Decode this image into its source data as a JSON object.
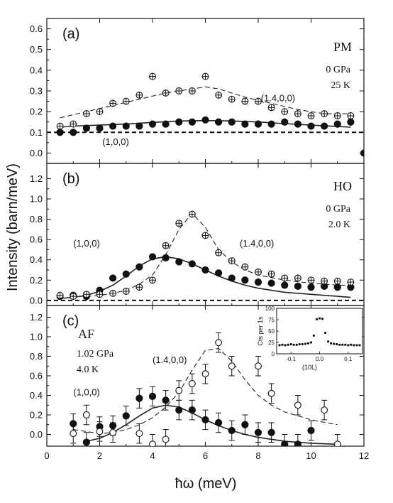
{
  "figure": {
    "xlabel": "ħω (meV)",
    "ylabel": "Intensity (barn/meV)"
  },
  "chart_data": [
    {
      "type": "scatter",
      "panel_label": "(a)",
      "phase": "PM",
      "conditions": [
        "0 GPa",
        "25 K"
      ],
      "xlim": [
        0,
        12
      ],
      "ylim": [
        -0.05,
        0.65
      ],
      "xticks": [
        0,
        2,
        4,
        6,
        8,
        10,
        12
      ],
      "yticks": [
        "0.0",
        "0.1",
        "0.2",
        "0.3",
        "0.4",
        "0.5",
        "0.6"
      ],
      "ytick_values": [
        0.0,
        0.1,
        0.2,
        0.3,
        0.4,
        0.5,
        0.6
      ],
      "series": [
        {
          "name": "(1,0,0)",
          "marker": "filled-circle",
          "x": [
            0.5,
            1.0,
            1.5,
            2.0,
            2.5,
            3.0,
            3.5,
            4.0,
            4.5,
            5.0,
            5.5,
            6.0,
            6.5,
            7.0,
            7.5,
            8.0,
            8.5,
            9.0,
            9.5,
            10.0,
            10.5,
            11.0,
            11.5,
            12.0
          ],
          "y": [
            0.1,
            0.1,
            0.12,
            0.12,
            0.13,
            0.13,
            0.13,
            0.14,
            0.14,
            0.15,
            0.15,
            0.16,
            0.15,
            0.15,
            0.14,
            0.14,
            0.14,
            0.15,
            0.14,
            0.13,
            0.13,
            0.14,
            0.15,
            0.0
          ]
        },
        {
          "name": "(1.4,0,0)",
          "marker": "crossed-circle",
          "x": [
            0.5,
            1.0,
            1.5,
            2.0,
            2.5,
            3.0,
            3.5,
            4.0,
            4.5,
            5.0,
            5.5,
            6.0,
            6.5,
            7.0,
            7.5,
            8.0,
            8.5,
            9.0,
            9.5,
            10.0,
            10.5,
            11.0,
            11.5
          ],
          "y": [
            0.13,
            0.14,
            0.19,
            0.2,
            0.24,
            0.25,
            0.28,
            0.37,
            0.29,
            0.3,
            0.3,
            0.37,
            0.28,
            0.26,
            0.25,
            0.25,
            0.22,
            0.2,
            0.19,
            0.18,
            0.19,
            0.18,
            0.18
          ]
        }
      ],
      "fits": [
        {
          "style": "solid",
          "x": [
            0.5,
            1.0,
            2.0,
            3.0,
            4.0,
            5.0,
            6.0,
            7.0,
            8.0,
            9.0,
            10.0,
            11.0,
            11.5
          ],
          "y": [
            0.125,
            0.13,
            0.135,
            0.14,
            0.148,
            0.155,
            0.157,
            0.155,
            0.15,
            0.142,
            0.135,
            0.128,
            0.125
          ]
        },
        {
          "style": "dashed",
          "x": [
            0.5,
            1.5,
            2.5,
            3.5,
            4.5,
            5.5,
            6.0,
            6.5,
            7.5,
            8.5,
            9.5,
            10.5,
            11.5
          ],
          "y": [
            0.17,
            0.2,
            0.23,
            0.26,
            0.29,
            0.31,
            0.32,
            0.31,
            0.27,
            0.24,
            0.21,
            0.19,
            0.19
          ]
        }
      ],
      "baseline": 0.1,
      "labels": [
        {
          "text": "(1,0,0)",
          "x": 2.1,
          "y": 0.04
        },
        {
          "text": "(1.4,0,0)",
          "x": 8.1,
          "y": 0.25
        }
      ]
    },
    {
      "type": "scatter",
      "panel_label": "(b)",
      "phase": "HO",
      "conditions": [
        "0 GPa",
        "2.0 K"
      ],
      "xlim": [
        0,
        12
      ],
      "ylim": [
        -0.05,
        1.35
      ],
      "xticks": [
        0,
        2,
        4,
        6,
        8,
        10,
        12
      ],
      "yticks": [
        "0.0",
        "0.2",
        "0.4",
        "0.6",
        "0.8",
        "1.0",
        "1.2"
      ],
      "ytick_values": [
        0.0,
        0.2,
        0.4,
        0.6,
        0.8,
        1.0,
        1.2
      ],
      "series": [
        {
          "name": "(1,0,0)",
          "marker": "filled-circle",
          "x": [
            0.5,
            1.0,
            1.5,
            2.0,
            2.5,
            3.0,
            3.5,
            4.0,
            4.5,
            5.0,
            5.5,
            6.0,
            6.5,
            7.0,
            7.5,
            8.0,
            8.5,
            9.0,
            9.5,
            10.0,
            10.5,
            11.0,
            11.5
          ],
          "y": [
            0.04,
            0.05,
            0.04,
            0.1,
            0.22,
            0.26,
            0.33,
            0.43,
            0.42,
            0.38,
            0.36,
            0.3,
            0.27,
            0.22,
            0.2,
            0.18,
            0.17,
            0.15,
            0.14,
            0.13,
            0.14,
            0.13,
            0.13
          ]
        },
        {
          "name": "(1.4,0,0)",
          "marker": "crossed-circle",
          "x": [
            0.5,
            1.0,
            1.5,
            2.0,
            2.5,
            3.0,
            3.5,
            4.0,
            4.5,
            5.0,
            5.5,
            6.0,
            6.5,
            7.0,
            7.5,
            8.0,
            8.5,
            9.0,
            9.5,
            10.0,
            10.5,
            11.0,
            11.5
          ],
          "y": [
            0.05,
            0.04,
            0.06,
            0.06,
            0.07,
            0.09,
            0.13,
            0.2,
            0.54,
            0.76,
            0.85,
            0.64,
            0.47,
            0.39,
            0.33,
            0.28,
            0.26,
            0.22,
            0.22,
            0.2,
            0.19,
            0.19,
            0.18
          ]
        }
      ],
      "fits": [
        {
          "style": "solid",
          "x": [
            0.5,
            1.0,
            1.5,
            2.0,
            2.5,
            3.0,
            3.5,
            4.0,
            4.5,
            5.0,
            5.5,
            6.0,
            6.5,
            7.0,
            7.5,
            8.0,
            9.0,
            10.0,
            11.0,
            11.5
          ],
          "y": [
            0.02,
            0.03,
            0.05,
            0.09,
            0.15,
            0.24,
            0.34,
            0.41,
            0.43,
            0.41,
            0.36,
            0.3,
            0.24,
            0.19,
            0.15,
            0.12,
            0.08,
            0.06,
            0.04,
            0.03
          ]
        },
        {
          "style": "dashed",
          "x": [
            1.5,
            2.0,
            2.5,
            3.0,
            3.5,
            4.0,
            4.5,
            5.0,
            5.5,
            6.0,
            6.5,
            7.0,
            7.5,
            8.0,
            9.0,
            10.0,
            11.0,
            11.5
          ],
          "y": [
            0.04,
            0.05,
            0.07,
            0.1,
            0.16,
            0.25,
            0.45,
            0.7,
            0.86,
            0.72,
            0.5,
            0.38,
            0.3,
            0.25,
            0.2,
            0.17,
            0.15,
            0.15
          ]
        }
      ],
      "baseline": 0.0,
      "labels": [
        {
          "text": "(1,0,0)",
          "x": 1.0,
          "y": 0.53
        },
        {
          "text": "(1.4,0,0)",
          "x": 7.3,
          "y": 0.53
        }
      ]
    },
    {
      "type": "scatter",
      "panel_label": "(c)",
      "phase": "AF",
      "conditions": [
        "1.02 GPa",
        "4.0 K"
      ],
      "xlim": [
        0,
        12
      ],
      "ylim": [
        -0.12,
        1.32
      ],
      "xticks": [
        0,
        2,
        4,
        6,
        8,
        10,
        12
      ],
      "yticks": [
        "0.0",
        "0.2",
        "0.4",
        "0.6",
        "0.8",
        "1.0",
        "1.2"
      ],
      "ytick_values": [
        0.0,
        0.2,
        0.4,
        0.6,
        0.8,
        1.0,
        1.2
      ],
      "series": [
        {
          "name": "(1,0,0)",
          "marker": "filled-circle",
          "x": [
            1.0,
            1.5,
            2.0,
            2.5,
            3.0,
            3.5,
            4.0,
            4.5,
            5.0,
            5.5,
            6.0,
            6.5,
            7.0,
            7.5,
            8.0,
            8.5,
            9.0,
            9.5,
            10.0
          ],
          "y": [
            0.11,
            -0.08,
            0.08,
            0.09,
            0.19,
            0.37,
            0.39,
            0.35,
            0.25,
            0.25,
            0.15,
            0.12,
            0.04,
            0.1,
            0.02,
            0.02,
            -0.1,
            -0.1,
            0.04
          ],
          "yerr": [
            0.1,
            0.1,
            0.1,
            0.1,
            0.1,
            0.1,
            0.1,
            0.1,
            0.1,
            0.1,
            0.1,
            0.1,
            0.1,
            0.1,
            0.1,
            0.1,
            0.1,
            0.1,
            0.1
          ]
        },
        {
          "name": "(1.4,0,0)",
          "marker": "open-circle",
          "x": [
            1.0,
            1.5,
            2.0,
            2.5,
            3.5,
            4.0,
            4.5,
            5.0,
            5.5,
            6.0,
            6.5,
            7.0,
            8.0,
            8.5,
            9.5,
            10.5,
            11.0
          ],
          "y": [
            0.01,
            0.2,
            0.03,
            0.02,
            0.01,
            -0.1,
            -0.05,
            0.45,
            0.52,
            0.62,
            0.94,
            0.7,
            0.7,
            0.42,
            0.3,
            0.25,
            -0.1
          ],
          "yerr": [
            0.1,
            0.1,
            0.1,
            0.1,
            0.1,
            0.1,
            0.1,
            0.1,
            0.1,
            0.1,
            0.1,
            0.1,
            0.1,
            0.1,
            0.1,
            0.1,
            0.1
          ]
        }
      ],
      "fits": [
        {
          "style": "solid",
          "x": [
            1.5,
            2.0,
            2.5,
            3.0,
            3.5,
            4.0,
            4.5,
            5.0,
            5.5,
            6.0,
            6.5,
            7.0,
            7.5,
            8.0,
            9.0,
            10.0,
            11.0
          ],
          "y": [
            -0.07,
            -0.04,
            0.02,
            0.1,
            0.19,
            0.27,
            0.3,
            0.28,
            0.22,
            0.15,
            0.09,
            0.04,
            0.0,
            -0.03,
            -0.07,
            -0.09,
            -0.1
          ]
        },
        {
          "style": "dashed",
          "x": [
            1.0,
            1.5,
            2.0,
            2.5,
            3.0,
            3.5,
            4.0,
            4.5,
            5.0,
            5.5,
            6.0,
            6.5,
            7.0,
            7.5,
            8.0,
            8.5,
            9.0,
            10.0,
            11.0
          ],
          "y": [
            0.05,
            0.03,
            0.01,
            0.02,
            0.05,
            0.1,
            0.17,
            0.28,
            0.43,
            0.66,
            0.86,
            0.88,
            0.75,
            0.56,
            0.4,
            0.3,
            0.23,
            0.15,
            0.1
          ]
        }
      ],
      "labels": [
        {
          "text": "(1,0,0)",
          "x": 1.0,
          "y": 0.4
        },
        {
          "text": "(1.4,0,0)",
          "x": 4.0,
          "y": 0.73
        }
      ],
      "inset": {
        "type": "scatter",
        "ylabel": "Cts per 1s",
        "xlabel": "(10L)",
        "xlim": [
          -0.15,
          0.15
        ],
        "ylim": [
          0,
          100
        ],
        "xticks": [
          "-0.1",
          "0.0",
          "0.1"
        ],
        "xtick_values": [
          -0.1,
          0.0,
          0.1
        ],
        "yticks": [
          "0",
          "25",
          "50",
          "75",
          "100"
        ],
        "ytick_values": [
          0,
          25,
          50,
          75,
          100
        ],
        "x": [
          -0.14,
          -0.13,
          -0.12,
          -0.11,
          -0.1,
          -0.09,
          -0.08,
          -0.07,
          -0.06,
          -0.05,
          -0.04,
          -0.03,
          -0.02,
          -0.01,
          0.0,
          0.01,
          0.02,
          0.03,
          0.04,
          0.05,
          0.06,
          0.07,
          0.08,
          0.09,
          0.1,
          0.11,
          0.12,
          0.13,
          0.14
        ],
        "y": [
          19,
          20,
          19,
          20,
          21,
          20,
          20,
          21,
          21,
          22,
          23,
          25,
          40,
          76,
          78,
          77,
          46,
          27,
          23,
          22,
          21,
          20,
          20,
          20,
          19,
          20,
          19,
          19,
          19
        ]
      }
    }
  ]
}
